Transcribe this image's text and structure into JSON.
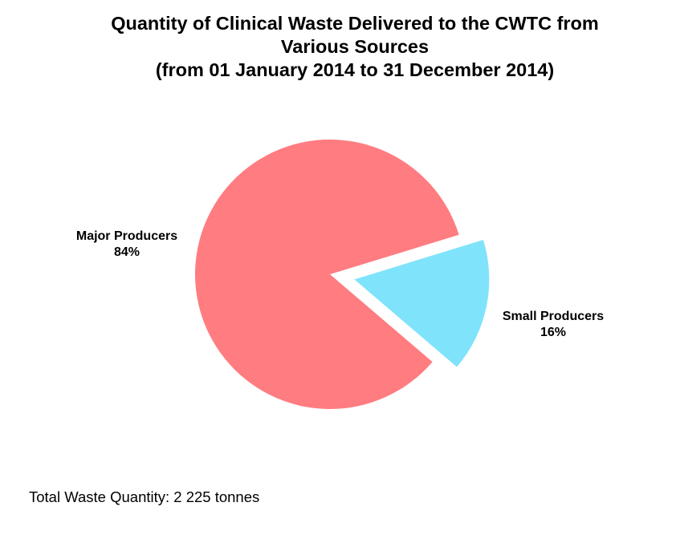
{
  "chart_data": {
    "type": "pie",
    "title": "Quantity of Clinical Waste Delivered to the CWTC from Various Sources (from 01 January 2014 to 31 December 2014)",
    "title_lines": [
      "Quantity of Clinical Waste Delivered to the CWTC from",
      "Various Sources",
      "(from 01 January 2014 to 31 December 2014)"
    ],
    "categories": [
      "Major Producers",
      "Small Producers"
    ],
    "values": [
      84,
      16
    ],
    "unit": "%",
    "colors": [
      "#FF7C80",
      "#80E3FC"
    ],
    "exploded": [
      "Small Producers"
    ],
    "legend": "none (data labels beside slices)",
    "annotation": "Total Waste Quantity: 2 225 tonnes",
    "total": {
      "value": 2225,
      "unit": "tonnes"
    }
  },
  "labels": {
    "major": {
      "name": "Major Producers",
      "pct": "84%"
    },
    "small": {
      "name": "Small Producers",
      "pct": "16%"
    }
  },
  "footer": "Total Waste Quantity: 2 225 tonnes"
}
